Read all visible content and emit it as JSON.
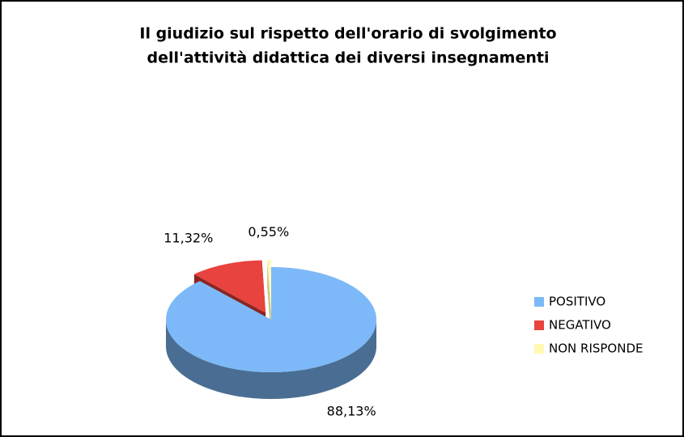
{
  "chart_data": {
    "type": "pie",
    "title": "Il giudizio sul rispetto dell'orario di svolgimento",
    "subtitle": "dell'attività didattica dei diversi insegnamenti",
    "categories": [
      "POSITIVO",
      "NEGATIVO",
      "NON RISPONDE"
    ],
    "values": [
      88.13,
      11.32,
      0.55
    ],
    "value_labels": [
      "88,13%",
      "11,32%",
      "0,55%"
    ],
    "colors": [
      "#7db9f8",
      "#e8433e",
      "#fff9b3"
    ],
    "side_colors": [
      "#4a6d93",
      "#8d2421",
      "#c9c27c"
    ],
    "three_d": true,
    "legend": "right"
  }
}
